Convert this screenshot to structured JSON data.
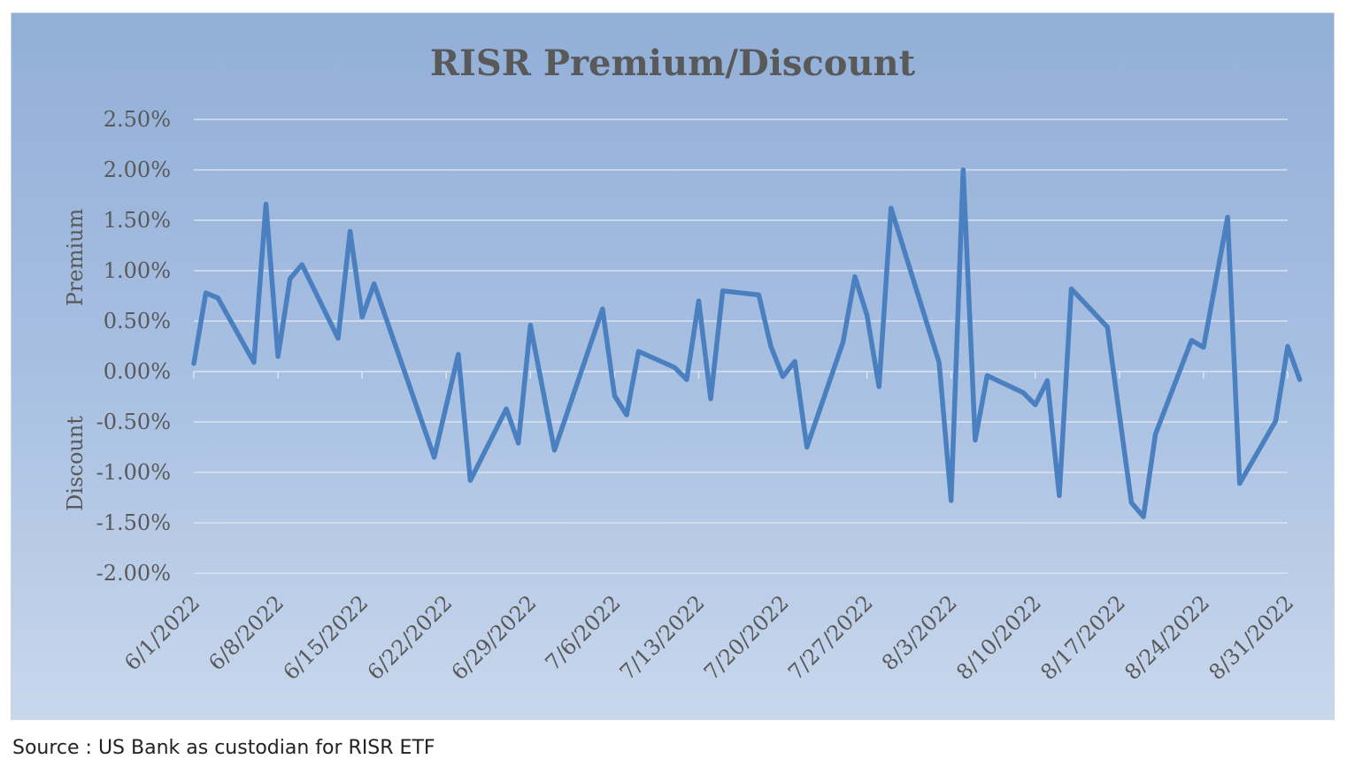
{
  "source_note": "Source : US Bank as custodian for RISR ETF",
  "colors": {
    "line": "#4a7fc0",
    "text": "#595959",
    "grid": "#e4eaf3",
    "background_top": "#92afd8",
    "background_bottom": "#c8d7ec"
  },
  "chart_data": {
    "type": "line",
    "title": "RISR Premium/Discount",
    "ylabel_positive": "Premium",
    "ylabel_negative": "Discount",
    "xlabel": "",
    "ylim": [
      -2.0,
      2.5
    ],
    "yticks": [
      2.5,
      2.0,
      1.5,
      1.0,
      0.5,
      0.0,
      -0.5,
      -1.0,
      -1.5,
      -2.0
    ],
    "ytick_labels": [
      "2.50%",
      "2.00%",
      "1.50%",
      "1.00%",
      "0.50%",
      "0.00%",
      "-0.50%",
      "-1.00%",
      "-1.50%",
      "-2.00%"
    ],
    "xlim": [
      "2022-06-01",
      "2022-08-31"
    ],
    "xticks": [
      "2022-06-01",
      "2022-06-08",
      "2022-06-15",
      "2022-06-22",
      "2022-06-29",
      "2022-07-06",
      "2022-07-13",
      "2022-07-20",
      "2022-07-27",
      "2022-08-03",
      "2022-08-10",
      "2022-08-17",
      "2022-08-24",
      "2022-08-31"
    ],
    "xtick_labels": [
      "6/1/2022",
      "6/8/2022",
      "6/15/2022",
      "6/22/2022",
      "6/29/2022",
      "7/6/2022",
      "7/13/2022",
      "7/20/2022",
      "7/27/2022",
      "8/3/2022",
      "8/10/2022",
      "8/17/2022",
      "8/24/2022",
      "8/31/2022"
    ],
    "grid": true,
    "legend": "none",
    "series": [
      {
        "color": "#4a7fc0",
        "points": [
          [
            "2022-06-01",
            0.08
          ],
          [
            "2022-06-02",
            0.78
          ],
          [
            "2022-06-03",
            0.73
          ],
          [
            "2022-06-06",
            0.09
          ],
          [
            "2022-06-07",
            1.66
          ],
          [
            "2022-06-08",
            0.15
          ],
          [
            "2022-06-09",
            0.92
          ],
          [
            "2022-06-10",
            1.06
          ],
          [
            "2022-06-13",
            0.33
          ],
          [
            "2022-06-14",
            1.39
          ],
          [
            "2022-06-15",
            0.54
          ],
          [
            "2022-06-16",
            0.87
          ],
          [
            "2022-06-21",
            -0.85
          ],
          [
            "2022-06-23",
            0.17
          ],
          [
            "2022-06-24",
            -1.08
          ],
          [
            "2022-06-27",
            -0.37
          ],
          [
            "2022-06-28",
            -0.71
          ],
          [
            "2022-06-29",
            0.46
          ],
          [
            "2022-07-01",
            -0.78
          ],
          [
            "2022-07-05",
            0.62
          ],
          [
            "2022-07-06",
            -0.24
          ],
          [
            "2022-07-07",
            -0.43
          ],
          [
            "2022-07-08",
            0.2
          ],
          [
            "2022-07-11",
            0.04
          ],
          [
            "2022-07-12",
            -0.08
          ],
          [
            "2022-07-13",
            0.7
          ],
          [
            "2022-07-14",
            -0.27
          ],
          [
            "2022-07-15",
            0.8
          ],
          [
            "2022-07-18",
            0.76
          ],
          [
            "2022-07-19",
            0.25
          ],
          [
            "2022-07-20",
            -0.05
          ],
          [
            "2022-07-21",
            0.1
          ],
          [
            "2022-07-22",
            -0.75
          ],
          [
            "2022-07-25",
            0.29
          ],
          [
            "2022-07-26",
            0.94
          ],
          [
            "2022-07-27",
            0.56
          ],
          [
            "2022-07-28",
            -0.15
          ],
          [
            "2022-07-29",
            1.62
          ],
          [
            "2022-08-02",
            0.09
          ],
          [
            "2022-08-03",
            -1.28
          ],
          [
            "2022-08-04",
            2.0
          ],
          [
            "2022-08-05",
            -0.68
          ],
          [
            "2022-08-06",
            -0.04
          ],
          [
            "2022-08-09",
            -0.21
          ],
          [
            "2022-08-10",
            -0.33
          ],
          [
            "2022-08-11",
            -0.09
          ],
          [
            "2022-08-12",
            -1.23
          ],
          [
            "2022-08-13",
            0.82
          ],
          [
            "2022-08-16",
            0.44
          ],
          [
            "2022-08-18",
            -1.3
          ],
          [
            "2022-08-19",
            -1.44
          ],
          [
            "2022-08-20",
            -0.62
          ],
          [
            "2022-08-23",
            0.31
          ],
          [
            "2022-08-24",
            0.24
          ],
          [
            "2022-08-26",
            1.53
          ],
          [
            "2022-08-27",
            -1.11
          ],
          [
            "2022-08-30",
            -0.49
          ],
          [
            "2022-08-31",
            0.25
          ],
          [
            "2022-09-01",
            -0.08
          ]
        ]
      }
    ]
  }
}
